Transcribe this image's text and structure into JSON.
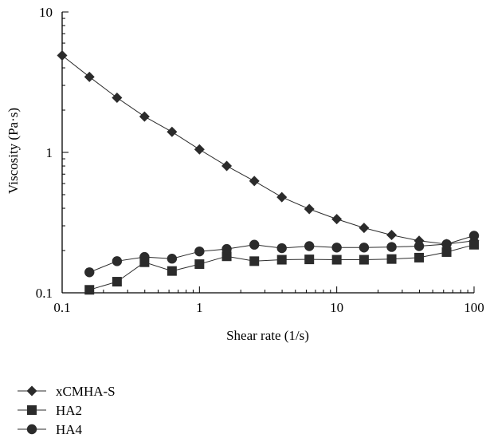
{
  "chart_data": {
    "type": "line",
    "xlabel": "Shear rate (1/s)",
    "ylabel": "Viscosity (Pa·s)",
    "xscale": "log",
    "yscale": "log",
    "xlim": [
      0.1,
      100
    ],
    "ylim": [
      0.1,
      10
    ],
    "xticks": [
      {
        "value": 0.1,
        "label": "0.1"
      },
      {
        "value": 1,
        "label": "1"
      },
      {
        "value": 10,
        "label": "10"
      },
      {
        "value": 100,
        "label": "100"
      }
    ],
    "yticks": [
      {
        "value": 0.1,
        "label": "0.1"
      },
      {
        "value": 1,
        "label": "1"
      },
      {
        "value": 10,
        "label": "10"
      }
    ],
    "grid": false,
    "legend_position": "bottom-left",
    "series": [
      {
        "name": "xCMHA-S",
        "marker": "diamond",
        "color": "#2b2b2b",
        "x": [
          0.1,
          0.158,
          0.251,
          0.398,
          0.631,
          1.0,
          1.58,
          2.51,
          3.98,
          6.31,
          10.0,
          15.8,
          25.1,
          39.8,
          63.1,
          100
        ],
        "y": [
          4.9,
          3.45,
          2.45,
          1.8,
          1.4,
          1.05,
          0.8,
          0.625,
          0.48,
          0.395,
          0.335,
          0.29,
          0.258,
          0.235,
          0.222,
          0.235
        ]
      },
      {
        "name": "HA2",
        "marker": "square",
        "color": "#2b2b2b",
        "x": [
          0.158,
          0.251,
          0.398,
          0.631,
          1.0,
          1.58,
          2.51,
          3.98,
          6.31,
          10.0,
          15.8,
          25.1,
          39.8,
          63.1,
          100
        ],
        "y": [
          0.105,
          0.12,
          0.165,
          0.143,
          0.16,
          0.182,
          0.168,
          0.172,
          0.173,
          0.172,
          0.172,
          0.174,
          0.178,
          0.195,
          0.22
        ]
      },
      {
        "name": "HA4",
        "marker": "circle",
        "color": "#2b2b2b",
        "x": [
          0.158,
          0.251,
          0.398,
          0.631,
          1.0,
          1.58,
          2.51,
          3.98,
          6.31,
          10.0,
          15.8,
          25.1,
          39.8,
          63.1,
          100
        ],
        "y": [
          0.14,
          0.168,
          0.18,
          0.175,
          0.197,
          0.205,
          0.22,
          0.208,
          0.215,
          0.21,
          0.21,
          0.212,
          0.215,
          0.222,
          0.255
        ]
      }
    ]
  }
}
